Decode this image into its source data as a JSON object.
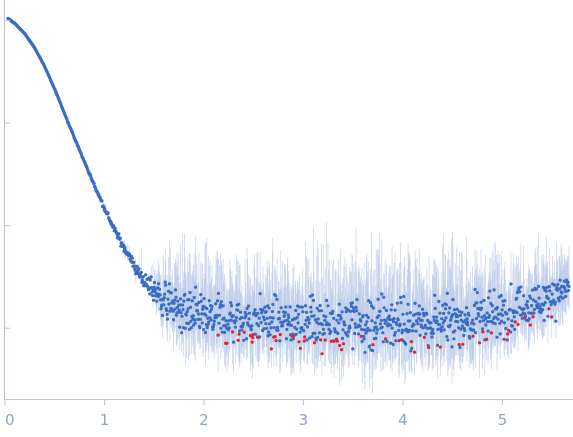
{
  "chart_data": {
    "type": "scatter",
    "title": "",
    "xlabel": "",
    "ylabel": "",
    "y_scale": "log",
    "xlim": [
      0,
      5.7
    ],
    "ylim_log10": [
      -3.7,
      0.2
    ],
    "x_ticks": [
      0,
      1,
      2,
      3,
      4,
      5
    ],
    "x_tick_labels": [
      "0",
      "1",
      "2",
      "3",
      "4",
      "5"
    ],
    "y_ticks_log10": [
      -3,
      -2,
      -1,
      0
    ],
    "y_tick_labels": [],
    "grid": false,
    "colors": {
      "points": "#3b6cc4",
      "outliers": "#e0262d",
      "error_bars": "#b7c9e8",
      "axis": "#b8c4dc",
      "ticks": "#8fa3c8"
    },
    "series": [
      {
        "role": "measured",
        "x": [
          0.03,
          0.1,
          0.2,
          0.3,
          0.4,
          0.5,
          0.6,
          0.7,
          0.8,
          0.9,
          1.0,
          1.1,
          1.2,
          1.3,
          1.4,
          1.5,
          1.6,
          1.7,
          1.8,
          1.9,
          2.0,
          2.2,
          2.4,
          2.6,
          2.8,
          3.0,
          3.2,
          3.4,
          3.6,
          3.8,
          4.0,
          4.2,
          4.4,
          4.6,
          4.8,
          5.0,
          5.2,
          5.4,
          5.5,
          5.6,
          5.65
        ],
        "y_log10": [
          0.02,
          -0.03,
          -0.13,
          -0.27,
          -0.45,
          -0.67,
          -0.91,
          -1.15,
          -1.38,
          -1.61,
          -1.83,
          -2.04,
          -2.22,
          -2.39,
          -2.54,
          -2.65,
          -2.73,
          -2.8,
          -2.85,
          -2.88,
          -2.9,
          -2.92,
          -2.93,
          -2.93,
          -2.94,
          -2.94,
          -2.95,
          -2.95,
          -2.95,
          -2.95,
          -2.95,
          -2.95,
          -2.94,
          -2.93,
          -2.9,
          -2.86,
          -2.81,
          -2.74,
          -2.7,
          -2.64,
          -2.6
        ],
        "log_scatter": [
          0.003,
          0.003,
          0.003,
          0.004,
          0.005,
          0.006,
          0.008,
          0.01,
          0.013,
          0.02,
          0.025,
          0.035,
          0.05,
          0.07,
          0.1,
          0.15,
          0.2,
          0.28,
          0.3,
          0.3,
          0.3,
          0.3,
          0.3,
          0.3,
          0.3,
          0.3,
          0.32,
          0.34,
          0.34,
          0.35,
          0.35,
          0.36,
          0.36,
          0.34,
          0.32,
          0.3,
          0.28,
          0.26,
          0.24,
          0.22,
          0.2
        ]
      },
      {
        "role": "outliers",
        "x_range": [
          1.9,
          5.7
        ]
      }
    ]
  }
}
